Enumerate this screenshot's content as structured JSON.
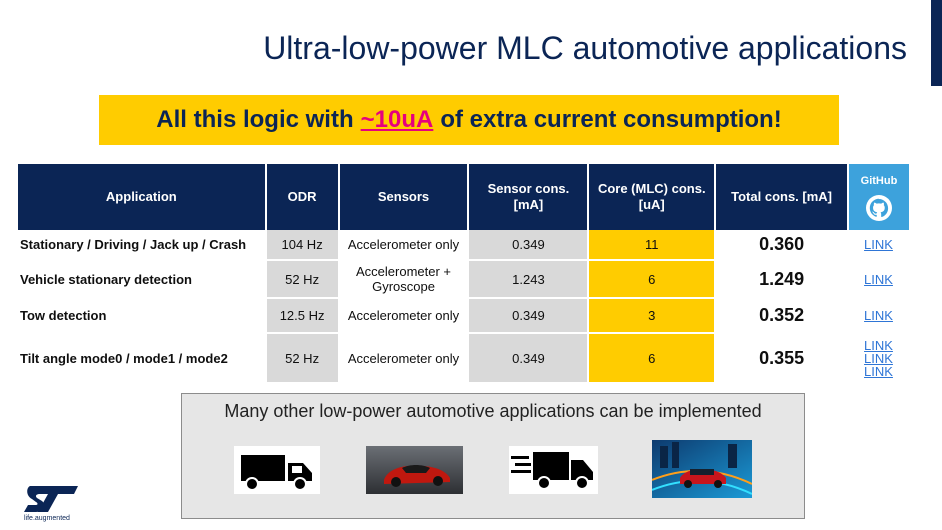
{
  "title": "Ultra-low-power MLC automotive applications",
  "banner": {
    "prefix": "All this logic with",
    "highlight": "~10uA",
    "suffix": "of extra current consumption!"
  },
  "table": {
    "headers": {
      "application": "Application",
      "odr": "ODR",
      "sensors": "Sensors",
      "sensor_cons": "Sensor cons. [mA]",
      "core_cons": "Core (MLC) cons. [uA]",
      "total_cons": "Total cons. [mA]",
      "github": "GitHub"
    },
    "rows": [
      {
        "application": "Stationary / Driving / Jack up / Crash",
        "odr": "104 Hz",
        "sensors": "Accelerometer only",
        "sensor_cons": "0.349",
        "core_cons": "11",
        "total_cons": "0.360",
        "links": [
          "LINK"
        ]
      },
      {
        "application": "Vehicle stationary detection",
        "odr": "52 Hz",
        "sensors": "Accelerometer + Gyroscope",
        "sensor_cons": "1.243",
        "core_cons": "6",
        "total_cons": "1.249",
        "links": [
          "LINK"
        ]
      },
      {
        "application": "Tow detection",
        "odr": "12.5 Hz",
        "sensors": "Accelerometer only",
        "sensor_cons": "0.349",
        "core_cons": "3",
        "total_cons": "0.352",
        "links": [
          "LINK"
        ]
      },
      {
        "application": "Tilt angle mode0 / mode1 / mode2",
        "odr": "52 Hz",
        "sensors": "Accelerometer only",
        "sensor_cons": "0.349",
        "core_cons": "6",
        "total_cons": "0.355",
        "links": [
          "LINK",
          "LINK",
          "LINK"
        ]
      }
    ]
  },
  "other_apps": {
    "caption": "Many other low-power automotive applications can be implemented",
    "images": [
      "truck-icon",
      "red-sports-car-photo",
      "fast-delivery-truck-icon",
      "racing-car-illustration"
    ]
  },
  "logo": {
    "text": "ST",
    "tagline": "life.augmented"
  },
  "colors": {
    "navy": "#0b2555",
    "yellow": "#ffcc00",
    "github_blue": "#3da2dc",
    "link_blue": "#2e75d6",
    "highlight_magenta": "#e6007e",
    "grey_cell": "#d9d9d9"
  }
}
